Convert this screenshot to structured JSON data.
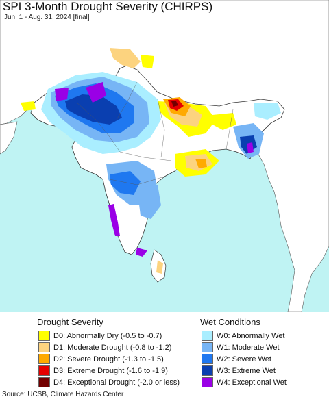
{
  "title": "SPI 3-Month Drought Severity (CHIRPS)",
  "subtitle": "Jun. 1 - Aug. 31, 2024 [final]",
  "legend": {
    "drought": {
      "title": "Drought Severity",
      "items": [
        {
          "label": "D0: Abnormally Dry (-0.5 to -0.7)",
          "color": "#ffff00"
        },
        {
          "label": "D1: Moderate Drought (-0.8 to -1.2)",
          "color": "#fcd37f"
        },
        {
          "label": "D2: Severe Drought (-1.3 to -1.5)",
          "color": "#ffaa00"
        },
        {
          "label": "D3: Extreme Drought (-1.6 to -1.9)",
          "color": "#e60000"
        },
        {
          "label": "D4: Exceptional Drought (-2.0 or less)",
          "color": "#730000"
        }
      ]
    },
    "wet": {
      "title": "Wet Conditions",
      "items": [
        {
          "label": "W0: Abnormally Wet",
          "color": "#aaeeff"
        },
        {
          "label": "W1: Moderate Wet",
          "color": "#77b5f5"
        },
        {
          "label": "W2: Severe Wet",
          "color": "#1f78f0"
        },
        {
          "label": "W3: Extreme Wet",
          "color": "#0a3fb0"
        },
        {
          "label": "W4: Exceptional Wet",
          "color": "#9a00e6"
        }
      ]
    }
  },
  "map_colors": {
    "sea": "#bff3f3",
    "land": "#ffffff",
    "neighbor": "#ffffff",
    "border": "#333333"
  },
  "source": "Source: UCSB, Climate Hazards Center"
}
